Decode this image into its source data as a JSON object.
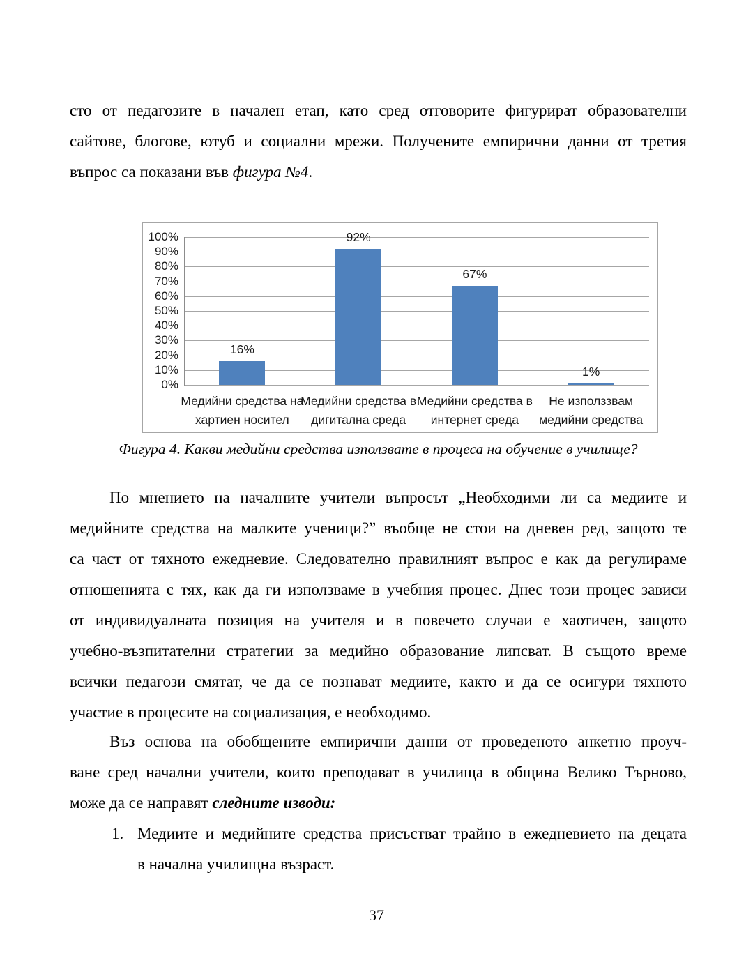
{
  "doc": {
    "page_number": "37",
    "figure_caption": "Фигура 4. Какви медийни средства използвате в процеса на обучение в училище?"
  },
  "paragraphs": {
    "p1": {
      "indent": false,
      "lines": [
        [
          {
            "t": "сто от педагозите в начален етап, като сред отговорите фигурират образователни"
          }
        ],
        [
          {
            "t": "сайтове, блогове, ютуб и социални мрежи. Получените емпирични данни от третия"
          }
        ],
        [
          {
            "t": "въпрос са показани във "
          },
          {
            "t": "фигура №4",
            "s": "i"
          },
          {
            "t": "."
          }
        ]
      ]
    },
    "p2": {
      "indent": true,
      "lines": [
        [
          {
            "t": "По мнението на началните учители въпросът „Необходими ли са медиите и"
          }
        ],
        [
          {
            "t": "медийните средства на малките ученици?” въобще не стои на дневен ред, защото те"
          }
        ],
        [
          {
            "t": "са част от тяхното ежедневие. Следователно правилният въпрос е как да регулираме"
          }
        ],
        [
          {
            "t": "отношенията с тях, как да ги използваме в учебния процес. Днес този процес зависи"
          }
        ],
        [
          {
            "t": "от индивидуалната позиция на учителя и в повечето случаи е хаотичен, защото"
          }
        ],
        [
          {
            "t": "учебно-възпитателни стратегии за медийно образование липсват. В същото време"
          }
        ],
        [
          {
            "t": "всички педагози смятат, че да се познават медиите, както и да се осигури тяхното"
          }
        ],
        [
          {
            "t": "участие в процесите на социализация, е необходимо."
          }
        ]
      ]
    },
    "p3": {
      "indent": true,
      "lines": [
        [
          {
            "t": "Въз основа на обобщените емпирични данни от проведеното анкетно проуч-"
          }
        ],
        [
          {
            "t": "ване сред начални учители, които преподават в училища в община Велико Търново,"
          }
        ],
        [
          {
            "t": "може да се направят "
          },
          {
            "t": "следните изводи:",
            "s": "bi"
          }
        ]
      ]
    },
    "li1": {
      "indent": false,
      "marker": "1.",
      "lines": [
        [
          {
            "t": "Медиите и медийните средства присъстват трайно в ежедневието на децата"
          }
        ],
        [
          {
            "t": "в начална училищна възраст."
          }
        ]
      ]
    }
  },
  "chart_data": {
    "type": "bar",
    "title": "",
    "xlabel": "",
    "ylabel": "",
    "categories": [
      "Медийни средства на хартиен носител",
      "Медийни средства в дигитална среда",
      "Медийни средства в интернет среда",
      "Не използвам медийни средства"
    ],
    "category_label_lines": [
      [
        "Медийни средства на",
        "хартиен носител"
      ],
      [
        "Медийни средства в",
        "дигитална среда"
      ],
      [
        "Медийни средства в",
        "интернет среда"
      ],
      [
        "Не използзвам",
        "медийни средства"
      ]
    ],
    "values": [
      16,
      92,
      67,
      1
    ],
    "data_labels": [
      "16%",
      "92%",
      "67%",
      "1%"
    ],
    "ylim": [
      0,
      100
    ],
    "ytick_step": 10,
    "ytick_labels": [
      "100%",
      "90%",
      "80%",
      "70%",
      "60%",
      "50%",
      "40%",
      "30%",
      "20%",
      "10%",
      "0%"
    ],
    "grid": true,
    "legend": "none",
    "bar_color": "#4f81bd",
    "grid_color": "#a6a6a6",
    "border_color": "#a6a6a6"
  }
}
